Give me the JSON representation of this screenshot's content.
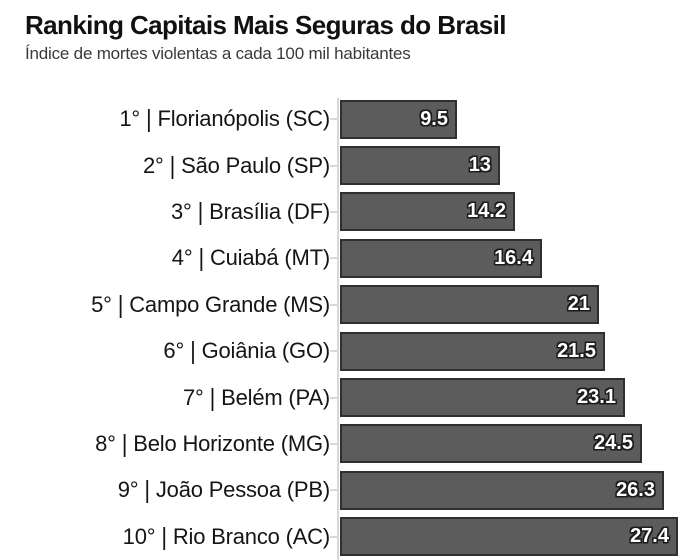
{
  "chart_data": {
    "type": "bar",
    "orientation": "horizontal",
    "title": "Ranking Capitais Mais Seguras do Brasil",
    "subtitle": "Índice de mortes violentas a cada 100 mil habitantes",
    "separator": "|",
    "categories": [
      "1° | Florianópolis (SC)",
      "2° | São Paulo (SP)",
      "3° | Brasília (DF)",
      "4° | Cuiabá (MT)",
      "5° | Campo Grande (MS)",
      "6° | Goiânia (GO)",
      "7° | Belém (PA)",
      "8° | Belo Horizonte (MG)",
      "9° | João Pessoa (PB)",
      "10° | Rio Branco (AC)"
    ],
    "values": [
      9.5,
      13,
      14.2,
      16.4,
      21,
      21.5,
      23.1,
      24.5,
      26.3,
      27.4
    ],
    "xlim": [
      0,
      27.4
    ],
    "grid": false,
    "legend": "none",
    "bar_color": "#5c5c5c",
    "bar_border_color": "#2f2f2f",
    "value_label_color": "#ffffff",
    "rows": [
      {
        "rank": "1°",
        "city": "Florianópolis (SC)",
        "value": 9.5,
        "display": "9.5"
      },
      {
        "rank": "2°",
        "city": "São Paulo (SP)",
        "value": 13,
        "display": "13"
      },
      {
        "rank": "3°",
        "city": "Brasília (DF)",
        "value": 14.2,
        "display": "14.2"
      },
      {
        "rank": "4°",
        "city": "Cuiabá (MT)",
        "value": 16.4,
        "display": "16.4"
      },
      {
        "rank": "5°",
        "city": "Campo Grande (MS)",
        "value": 21,
        "display": "21"
      },
      {
        "rank": "6°",
        "city": "Goiânia (GO)",
        "value": 21.5,
        "display": "21.5"
      },
      {
        "rank": "7°",
        "city": "Belém (PA)",
        "value": 23.1,
        "display": "23.1"
      },
      {
        "rank": "8°",
        "city": "Belo Horizonte (MG)",
        "value": 24.5,
        "display": "24.5"
      },
      {
        "rank": "9°",
        "city": "João Pessoa (PB)",
        "value": 26.3,
        "display": "26.3"
      },
      {
        "rank": "10°",
        "city": "Rio Branco (AC)",
        "value": 27.4,
        "display": "27.4"
      }
    ]
  }
}
